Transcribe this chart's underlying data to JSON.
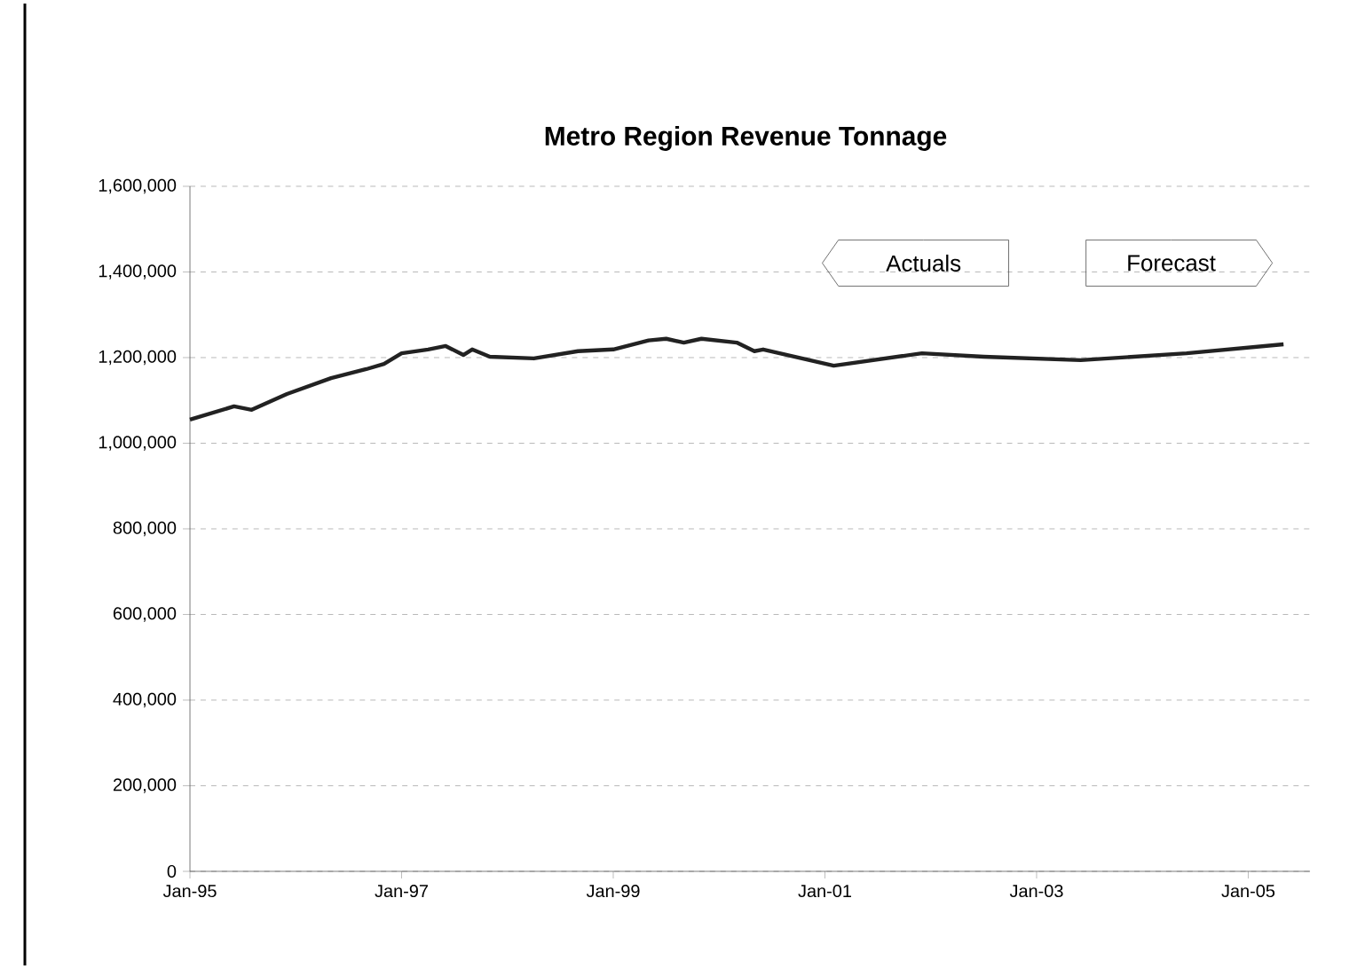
{
  "chart_data": {
    "type": "line",
    "title": "Metro Region Revenue Tonnage",
    "x": [
      "1995-01",
      "1995-06",
      "1995-08",
      "1995-12",
      "1996-05",
      "1996-09",
      "1996-11",
      "1997-01",
      "1997-04",
      "1997-06",
      "1997-08",
      "1997-09",
      "1997-11",
      "1998-04",
      "1998-09",
      "1999-01",
      "1999-05",
      "1999-07",
      "1999-09",
      "1999-11",
      "2000-03",
      "2000-05",
      "2000-06",
      "2001-02",
      "2001-12",
      "2002-07",
      "2003-06",
      "2004-06",
      "2005-05"
    ],
    "series": [
      {
        "color": "#222222",
        "values": [
          1055000,
          1086000,
          1078000,
          1115000,
          1152000,
          1173000,
          1185000,
          1210000,
          1219000,
          1227000,
          1206000,
          1219000,
          1202000,
          1198000,
          1215000,
          1219000,
          1240000,
          1244000,
          1235000,
          1244000,
          1235000,
          1215000,
          1219000,
          1181000,
          1210000,
          1202000,
          1194000,
          1210000,
          1231000
        ]
      }
    ],
    "xlim": [
      "1995-01",
      "2005-08"
    ],
    "xticks": [
      {
        "value": "1995-01",
        "label": "Jan-95"
      },
      {
        "value": "1997-01",
        "label": "Jan-97"
      },
      {
        "value": "1999-01",
        "label": "Jan-99"
      },
      {
        "value": "2001-01",
        "label": "Jan-01"
      },
      {
        "value": "2003-01",
        "label": "Jan-03"
      },
      {
        "value": "2005-01",
        "label": "Jan-05"
      }
    ],
    "ylim": [
      0,
      1600000
    ],
    "yticks": [
      {
        "value": 0,
        "label": "0"
      },
      {
        "value": 200000,
        "label": "200,000"
      },
      {
        "value": 400000,
        "label": "400,000"
      },
      {
        "value": 600000,
        "label": "600,000"
      },
      {
        "value": 800000,
        "label": "800,000"
      },
      {
        "value": 1000000,
        "label": "1,000,000"
      },
      {
        "value": 1200000,
        "label": "1,200,000"
      },
      {
        "value": 1400000,
        "label": "1,400,000"
      },
      {
        "value": 1600000,
        "label": "1,600,000"
      }
    ],
    "grid": "y",
    "legend": false,
    "marker": "none",
    "line_style": "solid",
    "annotations": [
      "Actuals",
      "Forecast"
    ]
  }
}
